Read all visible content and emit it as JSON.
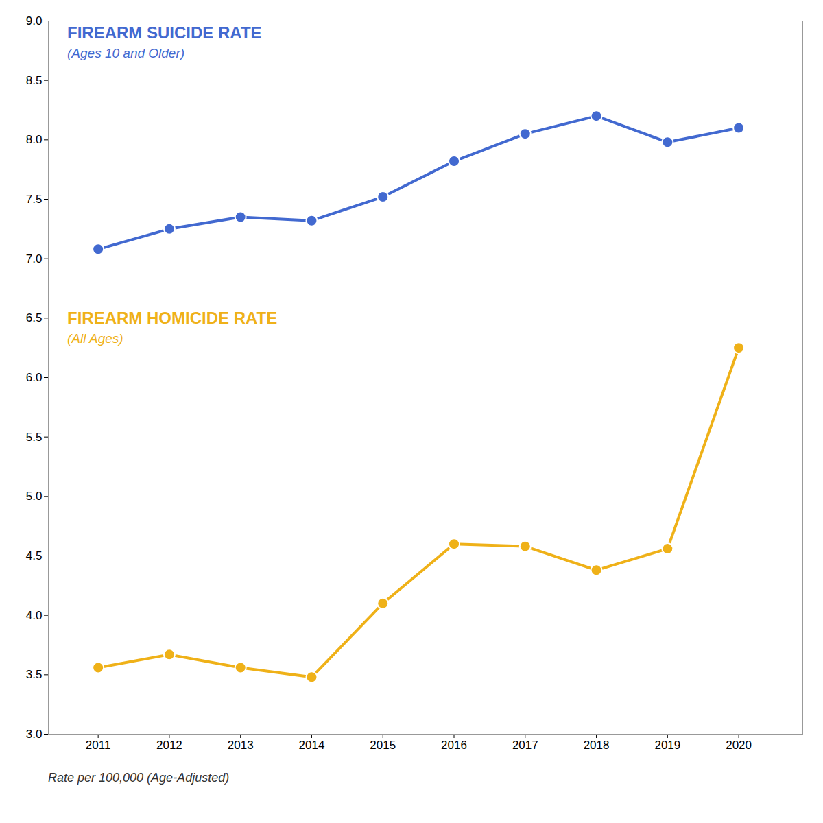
{
  "chart_data": {
    "type": "line",
    "x": [
      2011,
      2012,
      2013,
      2014,
      2015,
      2016,
      2017,
      2018,
      2019,
      2020
    ],
    "series": [
      {
        "name": "FIREARM SUICIDE RATE",
        "subtitle": "(Ages 10 and Older)",
        "marker": "circle",
        "values": [
          7.08,
          7.25,
          7.35,
          7.32,
          7.52,
          7.82,
          8.05,
          8.2,
          7.98,
          8.1
        ]
      },
      {
        "name": "FIREARM HOMICIDE RATE",
        "subtitle": "(All Ages)",
        "marker": "circle",
        "values": [
          3.56,
          3.67,
          3.56,
          3.48,
          4.1,
          4.6,
          4.58,
          4.38,
          4.56,
          6.25
        ]
      }
    ],
    "caption": "Rate per 100,000 (Age-Adjusted)",
    "xlim": [
      2010.3,
      2020.9
    ],
    "xticks": [
      2011,
      2012,
      2013,
      2014,
      2015,
      2016,
      2017,
      2018,
      2019,
      2020
    ],
    "ylim": [
      3.0,
      9.0
    ],
    "yticks": [
      {
        "value": 3.0,
        "label": "3.0"
      },
      3.5,
      {
        "value": 4.0,
        "label": "4.0"
      },
      4.5,
      {
        "value": 5.0,
        "label": "5.0"
      },
      5.5,
      {
        "value": 6.0,
        "label": "6.0"
      },
      6.5,
      {
        "value": 7.0,
        "label": "7.0"
      },
      7.5,
      {
        "value": 8.0,
        "label": "8.0"
      },
      8.5,
      {
        "value": 9.0,
        "label": "9.0"
      }
    ]
  }
}
